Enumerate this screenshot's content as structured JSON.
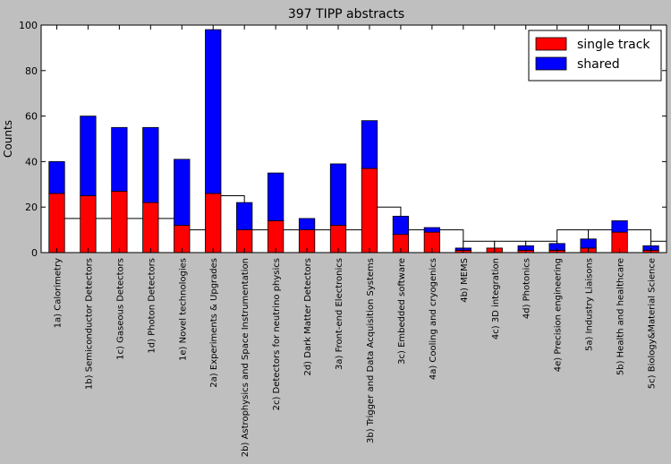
{
  "chart_data": {
    "type": "bar",
    "title": "397 TIPP abstracts",
    "xlabel": "",
    "ylabel": "Counts",
    "ylim": [
      0,
      100
    ],
    "yticks": [
      0,
      20,
      40,
      60,
      80,
      100
    ],
    "grid": false,
    "legend_position": "top-right",
    "categories": [
      "1a) Calorimetry",
      "1b) Semiconductor Detectors",
      "1c) Gaseous Detectors",
      "1d) Photon Detectors",
      "1e) Novel technologies",
      "2a) Experiments & Upgrades",
      "2b) Astrophysics and Space Instrumentation",
      "2c) Detectors for neutrino physics",
      "2d) Dark Matter Detectors",
      "3a) Front-end Electronics",
      "3b) Trigger and Data Acquisition Systems",
      "3c) Embedded software",
      "4a) Cooling and cryogenics",
      "4b) MEMS",
      "4c) 3D integration",
      "4d) Photonics",
      "4e) Precision engineering",
      "5a) Industry Liaisons",
      "5b) Health and healthcare",
      "5c) Biology&Material Science"
    ],
    "series": [
      {
        "name": "single track",
        "color": "#ff0000",
        "values": [
          26,
          25,
          27,
          22,
          12,
          26,
          10,
          14,
          10,
          12,
          37,
          8,
          9,
          1,
          2,
          1,
          1,
          2,
          9,
          1
        ]
      },
      {
        "name": "shared",
        "color": "#0000ff",
        "values": [
          14,
          35,
          28,
          33,
          29,
          72,
          12,
          21,
          5,
          27,
          21,
          8,
          2,
          1,
          0,
          2,
          3,
          4,
          5,
          2
        ]
      },
      {
        "name": "",
        "color": "#ffffff",
        "values": [
          15,
          15,
          15,
          15,
          10,
          25,
          10,
          10,
          10,
          10,
          20,
          10,
          10,
          5,
          5,
          5,
          10,
          10,
          10,
          5
        ]
      }
    ]
  }
}
